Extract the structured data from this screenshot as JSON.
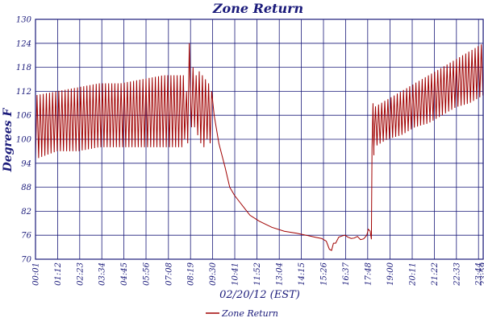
{
  "chart_data": {
    "type": "line",
    "title": "Zone Return",
    "xlabel": "02/20/12 (EST)",
    "ylabel": "Degrees F",
    "ylim": [
      70,
      130
    ],
    "yticks": [
      70,
      76,
      82,
      88,
      94,
      100,
      106,
      112,
      118,
      124,
      130
    ],
    "x_tick_labels": [
      "00:01",
      "01:12",
      "02:23",
      "03:34",
      "04:45",
      "05:56",
      "07:08",
      "08:19",
      "09:30",
      "10:41",
      "11:52",
      "13:04",
      "14:15",
      "15:26",
      "16:37",
      "17:48",
      "19:00",
      "20:11",
      "21:22",
      "22:33",
      "23:44",
      "23:59"
    ],
    "x_tick_minutes": [
      1,
      72,
      143,
      214,
      285,
      356,
      428,
      499,
      570,
      641,
      712,
      784,
      855,
      926,
      997,
      1068,
      1140,
      1211,
      1282,
      1353,
      1424,
      1439
    ],
    "xlim_minutes": [
      1,
      1439
    ],
    "grid": true,
    "legend_position": "bottom-center",
    "series": [
      {
        "name": "Zone Return",
        "color": "#a00000",
        "segments": [
          {
            "kind": "oscillation",
            "minutes": [
              1,
              480
            ],
            "period_minutes": 10,
            "low": [
              95,
              97,
              97,
              98,
              98,
              98,
              98,
              98
            ],
            "high": [
              111,
              112,
              113,
              114,
              114,
              115,
              116,
              116
            ]
          },
          {
            "kind": "trace",
            "points": [
              [
                480,
                100
              ],
              [
                486,
                112
              ],
              [
                490,
                99
              ],
              [
                495,
                124
              ],
              [
                498,
                113
              ],
              [
                502,
                103
              ],
              [
                507,
                118
              ],
              [
                512,
                103
              ],
              [
                517,
                116
              ],
              [
                522,
                101
              ],
              [
                527,
                117
              ],
              [
                532,
                99
              ],
              [
                537,
                116
              ],
              [
                542,
                98
              ],
              [
                547,
                115
              ],
              [
                552,
                100
              ],
              [
                557,
                114
              ],
              [
                562,
                99
              ],
              [
                567,
                112
              ],
              [
                575,
                106
              ],
              [
                590,
                99
              ],
              [
                610,
                93
              ],
              [
                625,
                88
              ],
              [
                640,
                86
              ],
              [
                660,
                84
              ],
              [
                690,
                81
              ],
              [
                720,
                79.5
              ],
              [
                760,
                78
              ],
              [
                800,
                77
              ],
              [
                840,
                76.5
              ],
              [
                870,
                76
              ],
              [
                900,
                75.5
              ],
              [
                920,
                75.2
              ],
              [
                935,
                74.5
              ],
              [
                945,
                72.5
              ],
              [
                952,
                72.2
              ],
              [
                958,
                74
              ],
              [
                965,
                74
              ],
              [
                975,
                75.5
              ],
              [
                985,
                75.8
              ],
              [
                995,
                76
              ],
              [
                1005,
                75.5
              ],
              [
                1015,
                75.2
              ],
              [
                1025,
                75.3
              ],
              [
                1035,
                75.7
              ],
              [
                1045,
                74.9
              ],
              [
                1055,
                75.1
              ],
              [
                1065,
                76
              ],
              [
                1070,
                77.5
              ],
              [
                1076,
                77
              ],
              [
                1080,
                75
              ],
              [
                1082,
                98
              ],
              [
                1085,
                109
              ],
              [
                1088,
                96
              ]
            ]
          },
          {
            "kind": "oscillation",
            "minutes": [
              1088,
              1439
            ],
            "period_minutes": 10,
            "low": [
              98,
              100,
              101,
              103,
              104,
              106,
              108,
              109,
              111
            ],
            "high": [
              108,
              110,
              112,
              114,
              116,
              118,
              120,
              122,
              124
            ]
          }
        ]
      }
    ]
  }
}
